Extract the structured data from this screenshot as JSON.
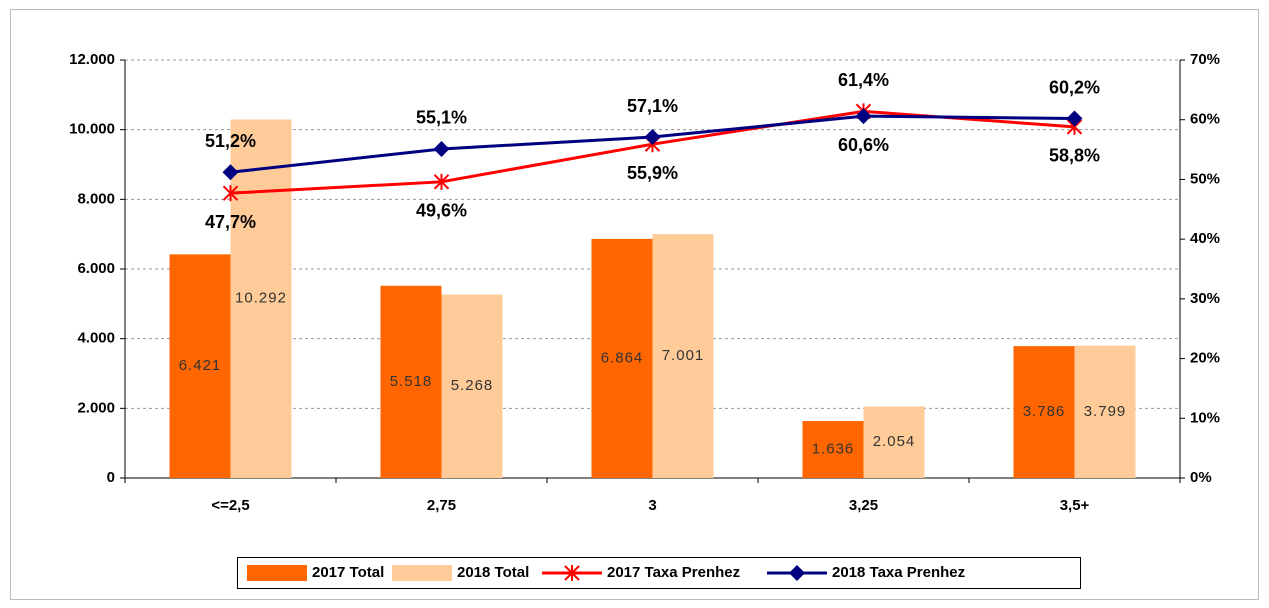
{
  "chart_data": {
    "type": "bar",
    "categories": [
      "<=2,5",
      "2,75",
      "3",
      "3,25",
      "3,5+"
    ],
    "ylim": [
      0,
      12000
    ],
    "yticks": [
      0,
      {
        "value": 2000,
        "label": "2.000"
      },
      {
        "value": 4000,
        "label": "4.000"
      },
      {
        "value": 6000,
        "label": "6.000"
      },
      {
        "value": 8000,
        "label": "8.000"
      },
      {
        "value": 10000,
        "label": "10.000"
      },
      {
        "value": 12000,
        "label": "12.000"
      }
    ],
    "y2lim": [
      0,
      70
    ],
    "y2ticks": [
      {
        "value": 0,
        "label": "0%"
      },
      {
        "value": 10,
        "label": "10%"
      },
      {
        "value": 20,
        "label": "20%"
      },
      {
        "value": 30,
        "label": "30%"
      },
      {
        "value": 40,
        "label": "40%"
      },
      {
        "value": 50,
        "label": "50%"
      },
      {
        "value": 60,
        "label": "60%"
      },
      {
        "value": 70,
        "label": "70%"
      }
    ],
    "grid": true,
    "legend": "bottom",
    "series": [
      {
        "name": "2017 Total",
        "type": "bar",
        "color": "#ff6600",
        "values": [
          6421,
          5518,
          6864,
          1636,
          3786
        ],
        "value_labels": [
          "6.421",
          "5.518",
          "6.864",
          "1.636",
          "3.786"
        ]
      },
      {
        "name": "2018 Total",
        "type": "bar",
        "color": "#ffcc99",
        "values": [
          10292,
          5268,
          7001,
          2054,
          3799
        ],
        "value_labels": [
          "10.292",
          "5.268",
          "7.001",
          "2.054",
          "3.799"
        ]
      },
      {
        "name": "2017 Taxa Prenhez",
        "type": "line",
        "axis": "y2",
        "color": "#ff0000",
        "marker": "star",
        "values": [
          47.7,
          49.6,
          55.9,
          61.4,
          58.8
        ],
        "value_labels": [
          "47,7%",
          "49,6%",
          "55,9%",
          "61,4%",
          "58,8%"
        ]
      },
      {
        "name": "2018 Taxa Prenhez",
        "type": "line",
        "axis": "y2",
        "color": "#000080",
        "marker": "diamond",
        "values": [
          51.2,
          55.1,
          57.1,
          60.6,
          60.2
        ],
        "value_labels": [
          "51,2%",
          "55,1%",
          "57,1%",
          "60,6%",
          "60,2%"
        ]
      }
    ]
  }
}
